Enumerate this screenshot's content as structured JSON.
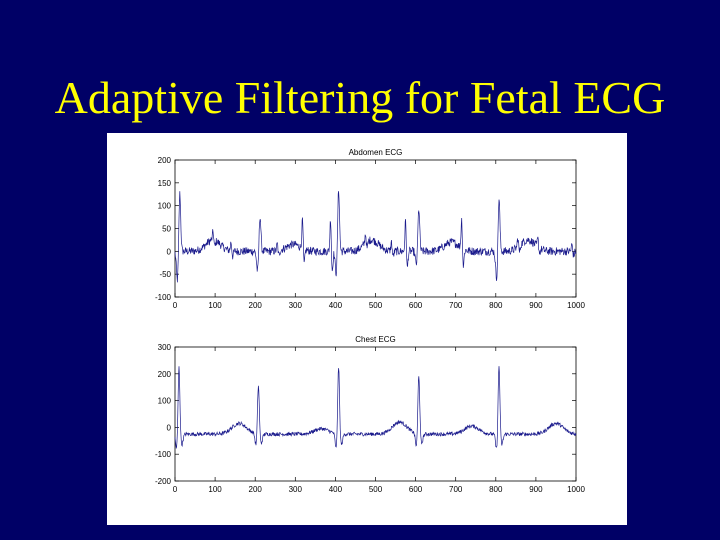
{
  "slide": {
    "title": "Adaptive Filtering for Fetal ECG"
  },
  "colors": {
    "background": "#000066",
    "title": "#ffff00",
    "trace": "#1a1a8c"
  },
  "chart_data": [
    {
      "type": "line",
      "title": "Abdomen ECG",
      "xlim": [
        0,
        1000
      ],
      "ylim": [
        -100,
        200
      ],
      "xticks": [
        0,
        100,
        200,
        300,
        400,
        500,
        600,
        700,
        800,
        900,
        1000
      ],
      "yticks": [
        200,
        150,
        100,
        50,
        0,
        -50,
        -100
      ],
      "maternal_beats": [
        {
          "x": 12,
          "peak": 130,
          "trough": -65
        },
        {
          "x": 212,
          "peak": 80,
          "trough": -45
        },
        {
          "x": 408,
          "peak": 138,
          "trough": -50
        },
        {
          "x": 608,
          "peak": 95,
          "trough": -30
        },
        {
          "x": 808,
          "peak": 118,
          "trough": -60
        }
      ],
      "fetal_beats": [
        {
          "x": 95,
          "peak": 18,
          "trough": -15
        },
        {
          "x": 140,
          "peak": 20,
          "trough": -12
        },
        {
          "x": 255,
          "peak": 15,
          "trough": -12
        },
        {
          "x": 318,
          "peak": 65,
          "trough": -35
        },
        {
          "x": 388,
          "peak": 75,
          "trough": -45
        },
        {
          "x": 475,
          "peak": 22,
          "trough": -15
        },
        {
          "x": 540,
          "peak": 20,
          "trough": -12
        },
        {
          "x": 575,
          "peak": 70,
          "trough": -40
        },
        {
          "x": 715,
          "peak": 65,
          "trough": -40
        },
        {
          "x": 855,
          "peak": 20,
          "trough": -15
        },
        {
          "x": 905,
          "peak": 18,
          "trough": -10
        },
        {
          "x": 990,
          "peak": 15,
          "trough": -10
        }
      ],
      "t_waves": [
        {
          "x": 95,
          "height": 25
        },
        {
          "x": 295,
          "height": 15
        },
        {
          "x": 490,
          "height": 25
        },
        {
          "x": 690,
          "height": 20
        },
        {
          "x": 880,
          "height": 25
        }
      ]
    },
    {
      "type": "line",
      "title": "Chest ECG",
      "xlim": [
        0,
        1000
      ],
      "ylim": [
        -200,
        300
      ],
      "xticks": [
        0,
        100,
        200,
        300,
        400,
        500,
        600,
        700,
        800,
        900,
        1000
      ],
      "yticks": [
        300,
        200,
        100,
        0,
        -100,
        -200
      ],
      "baseline": -25,
      "beats": [
        {
          "x": 10,
          "peak": 255,
          "q": -55,
          "s": -40
        },
        {
          "x": 208,
          "peak": 185,
          "q": -45,
          "s": -35
        },
        {
          "x": 408,
          "peak": 255,
          "q": -60,
          "s": -40
        },
        {
          "x": 608,
          "peak": 225,
          "q": -50,
          "s": -35
        },
        {
          "x": 808,
          "peak": 260,
          "q": -60,
          "s": -40
        }
      ],
      "t_waves": [
        {
          "x": 160,
          "height": 40
        },
        {
          "x": 365,
          "height": 20
        },
        {
          "x": 560,
          "height": 45
        },
        {
          "x": 740,
          "height": 30
        },
        {
          "x": 950,
          "height": 40
        }
      ]
    }
  ]
}
